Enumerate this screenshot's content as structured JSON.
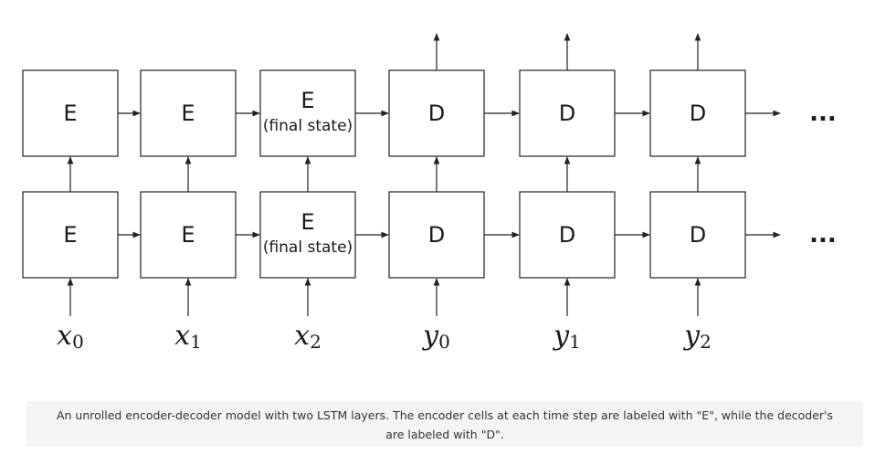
{
  "diagram": {
    "top_row": [
      {
        "label": "E",
        "sublabel": ""
      },
      {
        "label": "E",
        "sublabel": ""
      },
      {
        "label": "E",
        "sublabel": "(final state)"
      },
      {
        "label": "D",
        "sublabel": ""
      },
      {
        "label": "D",
        "sublabel": ""
      },
      {
        "label": "D",
        "sublabel": ""
      }
    ],
    "bottom_row": [
      {
        "label": "E",
        "sublabel": ""
      },
      {
        "label": "E",
        "sublabel": ""
      },
      {
        "label": "E",
        "sublabel": "(final state)"
      },
      {
        "label": "D",
        "sublabel": ""
      },
      {
        "label": "D",
        "sublabel": ""
      },
      {
        "label": "D",
        "sublabel": ""
      }
    ],
    "inputs": [
      {
        "var": "x",
        "sub": "0"
      },
      {
        "var": "x",
        "sub": "1"
      },
      {
        "var": "x",
        "sub": "2"
      },
      {
        "var": "y",
        "sub": "0"
      },
      {
        "var": "y",
        "sub": "1"
      },
      {
        "var": "y",
        "sub": "2"
      }
    ],
    "continuation": "..."
  },
  "caption": "An unrolled encoder-decoder model with two LSTM layers. The encoder cells at each time step are labeled with \"E\", while the decoder's are labeled with \"D\"."
}
